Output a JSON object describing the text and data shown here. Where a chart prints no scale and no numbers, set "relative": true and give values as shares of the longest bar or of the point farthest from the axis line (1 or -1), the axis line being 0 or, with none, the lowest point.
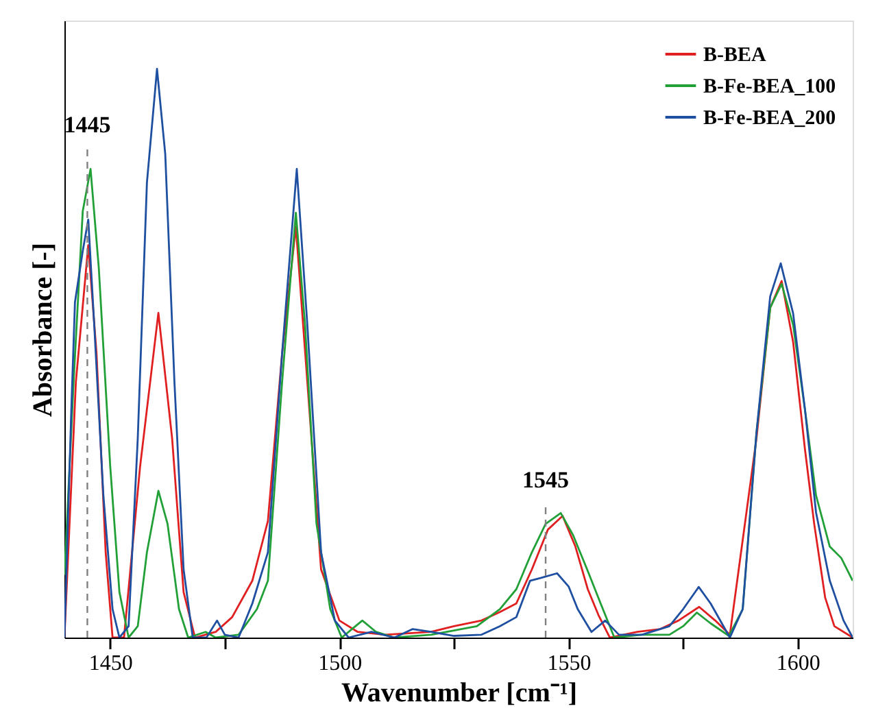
{
  "chart_data": {
    "type": "line",
    "xlabel": "Wavenumber [cm⁻¹]",
    "ylabel": "Absorbance [-]",
    "relative": true,
    "xlim": [
      1440,
      1612
    ],
    "xticks": [
      1450,
      {
        "value": 1475,
        "label": null
      },
      1500,
      {
        "value": 1525,
        "label": null
      },
      1550,
      {
        "value": 1575,
        "label": null
      },
      1600
    ],
    "legend": "top right",
    "grid": false,
    "line_style": "solid",
    "marker": "none",
    "ref_lines": [
      {
        "axis": "x",
        "value": 1445,
        "label": "1445",
        "color": "#808080",
        "line_style": "dashed"
      },
      {
        "axis": "x",
        "value": 1545,
        "label": "1545",
        "color": "#808080",
        "line_style": "dashed"
      }
    ],
    "series": [
      {
        "name": "B-BEA",
        "color": "#e02020",
        "x": [
          1440,
          1442.5,
          1445.2,
          1447,
          1449,
          1450.5,
          1453,
          1456.5,
          1460.5,
          1463.5,
          1466,
          1468.5,
          1473,
          1476.6,
          1481,
          1484.4,
          1487.5,
          1490.5,
          1493,
          1496,
          1500,
          1504,
          1510,
          1520,
          1525,
          1531,
          1535,
          1538.6,
          1542,
          1545.5,
          1548.7,
          1551.5,
          1554.2,
          1556.5,
          1559,
          1565,
          1570,
          1574,
          1578.5,
          1582,
          1585.2,
          1591,
          1594,
          1596.5,
          1599,
          1601.6,
          1603.6,
          1606,
          1608,
          1612
        ],
        "values": [
          0,
          0.45,
          0.69,
          0.5,
          0.15,
          0,
          0,
          0.3,
          0.571,
          0.35,
          0.08,
          0,
          0.01,
          0.036,
          0.1,
          0.205,
          0.5,
          0.723,
          0.45,
          0.12,
          0.03,
          0.01,
          0.005,
          0.01,
          0.02,
          0.03,
          0.045,
          0.06,
          0.12,
          0.19,
          0.214,
          0.16,
          0.085,
          0.04,
          0,
          0.01,
          0.015,
          0.03,
          0.054,
          0.03,
          0.005,
          0.35,
          0.58,
          0.627,
          0.52,
          0.33,
          0.2,
          0.07,
          0.02,
          0
        ]
      },
      {
        "name": "B-Fe-BEA_100",
        "color": "#22a038",
        "x": [
          1440,
          1442,
          1444,
          1445.7,
          1447.5,
          1450,
          1452,
          1454,
          1456,
          1458,
          1460.5,
          1462.5,
          1465,
          1467,
          1470.8,
          1473,
          1478,
          1482,
          1484.4,
          1487.5,
          1490.5,
          1492.5,
          1495,
          1498,
          1500.5,
          1505,
          1508,
          1512,
          1520,
          1530,
          1535,
          1538.6,
          1542,
          1545,
          1548.3,
          1551,
          1554.2,
          1557,
          1560,
          1566,
          1572,
          1575,
          1578,
          1581,
          1585,
          1588,
          1591,
          1594,
          1596.5,
          1599,
          1601.6,
          1604,
          1607,
          1609.5,
          1612
        ],
        "values": [
          0.11,
          0.45,
          0.75,
          0.824,
          0.65,
          0.3,
          0.08,
          0,
          0.02,
          0.15,
          0.258,
          0.2,
          0.05,
          0,
          0.01,
          0,
          0.005,
          0.05,
          0.1,
          0.45,
          0.747,
          0.55,
          0.2,
          0.05,
          0,
          0.03,
          0.01,
          0,
          0.005,
          0.02,
          0.05,
          0.085,
          0.15,
          0.2,
          0.219,
          0.18,
          0.117,
          0.06,
          0,
          0.005,
          0.005,
          0.02,
          0.044,
          0.025,
          0.003,
          0.05,
          0.36,
          0.58,
          0.622,
          0.55,
          0.4,
          0.25,
          0.16,
          0.14,
          0.1
        ]
      },
      {
        "name": "B-Fe-BEA_200",
        "color": "#1f4fa0",
        "x": [
          1440,
          1441.5,
          1442.3,
          1444,
          1445.2,
          1446.5,
          1448.5,
          1450.5,
          1452,
          1454,
          1456,
          1458,
          1460.2,
          1462,
          1464,
          1466,
          1468,
          1471,
          1473.3,
          1475,
          1478,
          1481,
          1484.4,
          1487.5,
          1490.7,
          1493,
          1496,
          1499,
          1502,
          1507,
          1512,
          1516,
          1520,
          1525,
          1531,
          1535,
          1538.6,
          1541.6,
          1544,
          1547.5,
          1550,
          1552,
          1555,
          1558,
          1561,
          1566,
          1572,
          1575,
          1578.4,
          1581,
          1585.2,
          1588,
          1591,
          1594,
          1596.3,
          1599,
          1601.6,
          1604,
          1607,
          1610,
          1612
        ],
        "values": [
          0,
          0.4,
          0.59,
          0.68,
          0.735,
          0.55,
          0.25,
          0.05,
          0,
          0.02,
          0.35,
          0.8,
          1.0,
          0.85,
          0.45,
          0.12,
          0,
          0,
          0.03,
          0.005,
          0,
          0.06,
          0.15,
          0.5,
          0.824,
          0.55,
          0.15,
          0.03,
          0,
          0.01,
          0,
          0.015,
          0.01,
          0.003,
          0.005,
          0.02,
          0.036,
          0.1,
          0.105,
          0.113,
          0.09,
          0.05,
          0.01,
          0.03,
          0.005,
          0.005,
          0.02,
          0.05,
          0.089,
          0.06,
          0,
          0.05,
          0.36,
          0.6,
          0.658,
          0.57,
          0.4,
          0.22,
          0.1,
          0.03,
          0
        ]
      }
    ]
  }
}
